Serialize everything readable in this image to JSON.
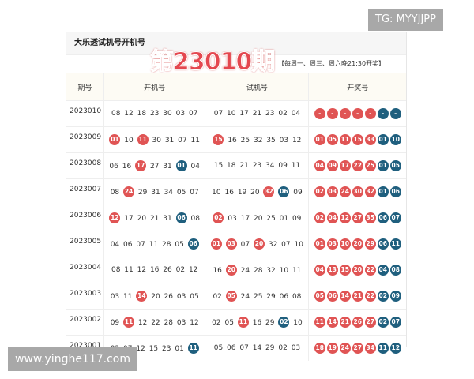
{
  "watermark_top": "TG: MYYJJPP",
  "watermark_bottom": "www.yinghe117.com",
  "title": "大乐透试机号开机号",
  "issue": "第23010期",
  "schedule": "【每周一、周三、周六晚21:30开奖】",
  "headers": [
    "期号",
    "开机号",
    "试机号",
    "开奖号"
  ],
  "colors": {
    "red": "#e05454",
    "blue": "#1f5f7e"
  },
  "rows": [
    {
      "period": "2023010",
      "kaiji": [
        [
          "08"
        ],
        [
          "12"
        ],
        [
          "18"
        ],
        [
          "23"
        ],
        [
          "30"
        ],
        [
          "03"
        ],
        [
          "07"
        ]
      ],
      "shiji": [
        [
          "07"
        ],
        [
          "10"
        ],
        [
          "17"
        ],
        [
          "21"
        ],
        [
          "23"
        ],
        [
          "02"
        ],
        [
          "04"
        ]
      ],
      "draw": {
        "front": [
          "-",
          "-",
          "-",
          "-",
          "-"
        ],
        "back": [
          "-",
          "-"
        ]
      }
    },
    {
      "period": "2023009",
      "kaiji": [
        [
          "01",
          "red"
        ],
        [
          "10"
        ],
        [
          "11",
          "red"
        ],
        [
          "30"
        ],
        [
          "31"
        ],
        [
          "07"
        ],
        [
          "11"
        ]
      ],
      "shiji": [
        [
          "15",
          "red"
        ],
        [
          "16"
        ],
        [
          "25"
        ],
        [
          "32"
        ],
        [
          "35"
        ],
        [
          "03"
        ],
        [
          "12"
        ]
      ],
      "draw": {
        "front": [
          "01",
          "05",
          "11",
          "15",
          "33"
        ],
        "back": [
          "01",
          "10"
        ]
      }
    },
    {
      "period": "2023008",
      "kaiji": [
        [
          "06"
        ],
        [
          "16"
        ],
        [
          "17",
          "red"
        ],
        [
          "27"
        ],
        [
          "31"
        ],
        [
          "01",
          "blue"
        ],
        [
          "04"
        ]
      ],
      "shiji": [
        [
          "15"
        ],
        [
          "18"
        ],
        [
          "21"
        ],
        [
          "23"
        ],
        [
          "34"
        ],
        [
          "09"
        ],
        [
          "11"
        ]
      ],
      "draw": {
        "front": [
          "04",
          "09",
          "17",
          "22",
          "25"
        ],
        "back": [
          "01",
          "05"
        ]
      }
    },
    {
      "period": "2023007",
      "kaiji": [
        [
          "08"
        ],
        [
          "24",
          "red"
        ],
        [
          "29"
        ],
        [
          "31"
        ],
        [
          "34"
        ],
        [
          "05"
        ],
        [
          "07"
        ]
      ],
      "shiji": [
        [
          "10"
        ],
        [
          "16"
        ],
        [
          "19"
        ],
        [
          "20"
        ],
        [
          "32",
          "red"
        ],
        [
          "06",
          "blue"
        ],
        [
          "09"
        ]
      ],
      "draw": {
        "front": [
          "02",
          "03",
          "24",
          "30",
          "32"
        ],
        "back": [
          "01",
          "06"
        ]
      }
    },
    {
      "period": "2023006",
      "kaiji": [
        [
          "12",
          "red"
        ],
        [
          "17"
        ],
        [
          "20"
        ],
        [
          "21"
        ],
        [
          "31"
        ],
        [
          "06",
          "blue"
        ],
        [
          "08"
        ]
      ],
      "shiji": [
        [
          "02",
          "red"
        ],
        [
          "03"
        ],
        [
          "17"
        ],
        [
          "20"
        ],
        [
          "25"
        ],
        [
          "01"
        ],
        [
          "09"
        ]
      ],
      "draw": {
        "front": [
          "02",
          "04",
          "12",
          "27",
          "35"
        ],
        "back": [
          "06",
          "07"
        ]
      }
    },
    {
      "period": "2023005",
      "kaiji": [
        [
          "04"
        ],
        [
          "06"
        ],
        [
          "07"
        ],
        [
          "11"
        ],
        [
          "28"
        ],
        [
          "05"
        ],
        [
          "06",
          "blue"
        ]
      ],
      "shiji": [
        [
          "01",
          "red"
        ],
        [
          "03",
          "red"
        ],
        [
          "07"
        ],
        [
          "20",
          "red"
        ],
        [
          "32"
        ],
        [
          "07"
        ],
        [
          "10"
        ]
      ],
      "draw": {
        "front": [
          "01",
          "03",
          "10",
          "20",
          "29"
        ],
        "back": [
          "06",
          "11"
        ]
      }
    },
    {
      "period": "2023004",
      "kaiji": [
        [
          "08"
        ],
        [
          "11"
        ],
        [
          "12"
        ],
        [
          "16"
        ],
        [
          "26"
        ],
        [
          "02"
        ],
        [
          "12"
        ]
      ],
      "shiji": [
        [
          "16"
        ],
        [
          "20",
          "red"
        ],
        [
          "24"
        ],
        [
          "28"
        ],
        [
          "32"
        ],
        [
          "10"
        ],
        [
          "11"
        ]
      ],
      "draw": {
        "front": [
          "04",
          "13",
          "15",
          "20",
          "22"
        ],
        "back": [
          "04",
          "08"
        ]
      }
    },
    {
      "period": "2023003",
      "kaiji": [
        [
          "03"
        ],
        [
          "11"
        ],
        [
          "14",
          "red"
        ],
        [
          "20"
        ],
        [
          "26"
        ],
        [
          "03"
        ],
        [
          "05"
        ]
      ],
      "shiji": [
        [
          "02"
        ],
        [
          "05",
          "red"
        ],
        [
          "24"
        ],
        [
          "25"
        ],
        [
          "29"
        ],
        [
          "06"
        ],
        [
          "08"
        ]
      ],
      "draw": {
        "front": [
          "05",
          "06",
          "14",
          "21",
          "22"
        ],
        "back": [
          "02",
          "09"
        ]
      }
    },
    {
      "period": "2023002",
      "kaiji": [
        [
          "09"
        ],
        [
          "11",
          "red"
        ],
        [
          "12"
        ],
        [
          "22"
        ],
        [
          "28"
        ],
        [
          "03"
        ],
        [
          "12"
        ]
      ],
      "shiji": [
        [
          "02"
        ],
        [
          "05"
        ],
        [
          "11",
          "red"
        ],
        [
          "16"
        ],
        [
          "29"
        ],
        [
          "02",
          "blue"
        ],
        [
          "10"
        ]
      ],
      "draw": {
        "front": [
          "11",
          "14",
          "21",
          "26",
          "27"
        ],
        "back": [
          "02",
          "07"
        ]
      }
    },
    {
      "period": "2023001",
      "kaiji": [
        [
          "02"
        ],
        [
          "07"
        ],
        [
          "12"
        ],
        [
          "15"
        ],
        [
          "23"
        ],
        [
          "01"
        ],
        [
          "11",
          "blue"
        ]
      ],
      "shiji": [
        [
          "05"
        ],
        [
          "06"
        ],
        [
          "07"
        ],
        [
          "14"
        ],
        [
          "29"
        ],
        [
          "02"
        ],
        [
          "03"
        ]
      ],
      "draw": {
        "front": [
          "18",
          "19",
          "24",
          "27",
          "34"
        ],
        "back": [
          "11",
          "12"
        ]
      }
    }
  ]
}
